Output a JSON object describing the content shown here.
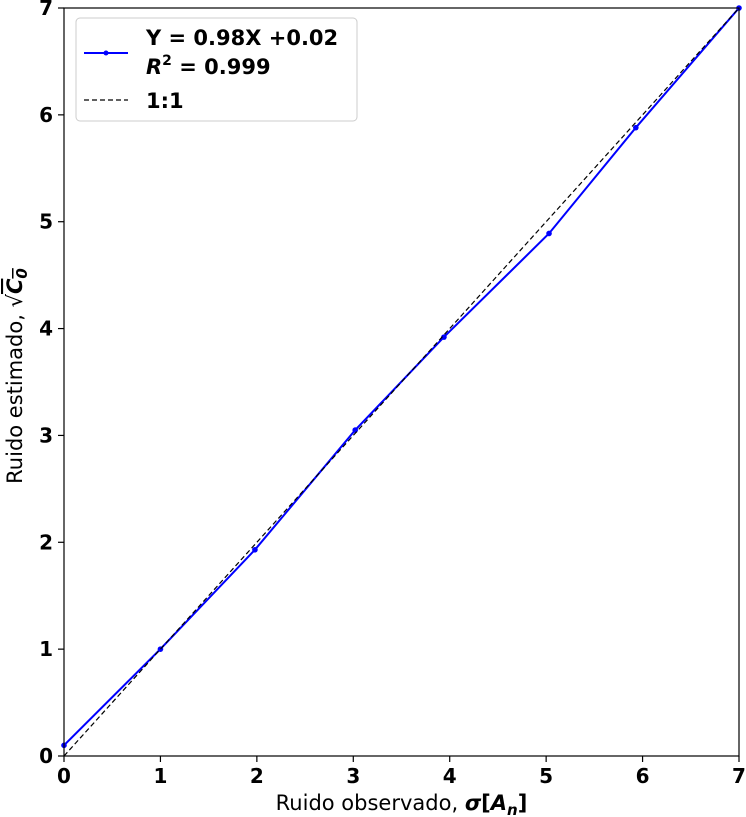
{
  "chart_data": {
    "type": "line",
    "xlabel": {
      "prefix": "Ruido observado, ",
      "symbol": "σ",
      "open": "[",
      "var": "A",
      "sub": "n",
      "close": "]"
    },
    "ylabel": {
      "prefix": "Ruido estimado, ",
      "radical": "√",
      "var": "C",
      "sub": "0"
    },
    "xlim": [
      0,
      7
    ],
    "ylim": [
      0,
      7
    ],
    "xticks": [
      "0",
      "1",
      "2",
      "3",
      "4",
      "5",
      "6",
      "7"
    ],
    "yticks": [
      "0",
      "1",
      "2",
      "3",
      "4",
      "5",
      "6",
      "7"
    ],
    "grid": false,
    "legend_position": "upper-left",
    "series": [
      {
        "name": "Y = 0.98X +0.02",
        "name_line2": {
          "var": "R",
          "sup": "2",
          "rest": " = 0.999"
        },
        "color": "#0000ff",
        "style": "solid",
        "marker": "dot",
        "x": [
          0,
          1.0,
          1.98,
          3.02,
          3.94,
          5.03,
          5.93,
          7.0
        ],
        "y": [
          0.1,
          1.0,
          1.93,
          3.05,
          3.92,
          4.89,
          5.88,
          7.0
        ]
      },
      {
        "name": "1:1",
        "color": "#000000",
        "style": "dashed",
        "x": [
          0,
          7
        ],
        "y": [
          0,
          7
        ]
      }
    ]
  }
}
